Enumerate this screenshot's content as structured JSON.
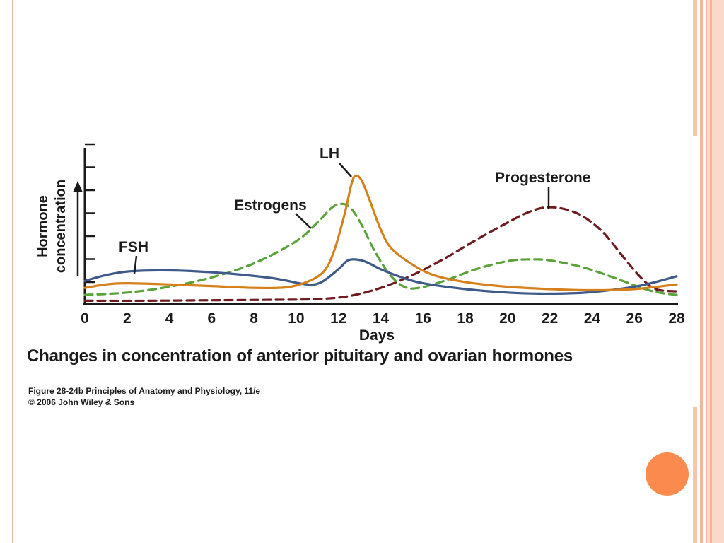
{
  "chart_data": {
    "type": "line",
    "title": "Changes in concentration of anterior pituitary and ovarian hormones",
    "xlabel": "Days",
    "ylabel": "Hormone concentration",
    "xlim": [
      0,
      28
    ],
    "x_ticks": [
      "0",
      "2",
      "4",
      "6",
      "8",
      "10",
      "12",
      "14",
      "16",
      "18",
      "20",
      "22",
      "24",
      "26",
      "28"
    ],
    "grid": false,
    "legend": "direct labels on curves",
    "series": [
      {
        "name": "FSH",
        "color": "#3e5a8a",
        "dashed": false,
        "points": [
          [
            0,
            0.9
          ],
          [
            1,
            1.15
          ],
          [
            2,
            1.3
          ],
          [
            3.5,
            1.35
          ],
          [
            5,
            1.32
          ],
          [
            7,
            1.2
          ],
          [
            9,
            1.0
          ],
          [
            10.5,
            0.75
          ],
          [
            11.2,
            0.85
          ],
          [
            12,
            1.4
          ],
          [
            12.5,
            1.8
          ],
          [
            13.2,
            1.75
          ],
          [
            14,
            1.4
          ],
          [
            15,
            1.05
          ],
          [
            16,
            0.8
          ],
          [
            18,
            0.55
          ],
          [
            20,
            0.4
          ],
          [
            22,
            0.35
          ],
          [
            24,
            0.42
          ],
          [
            26,
            0.65
          ],
          [
            27,
            0.85
          ],
          [
            28,
            1.1
          ]
        ]
      },
      {
        "name": "LH",
        "color": "#d5801a",
        "dashed": false,
        "points": [
          [
            0,
            0.6
          ],
          [
            1,
            0.75
          ],
          [
            2,
            0.8
          ],
          [
            4,
            0.75
          ],
          [
            6,
            0.68
          ],
          [
            8,
            0.6
          ],
          [
            9.5,
            0.62
          ],
          [
            10.5,
            0.85
          ],
          [
            11.3,
            1.3
          ],
          [
            11.8,
            2.2
          ],
          [
            12.3,
            3.8
          ],
          [
            12.6,
            5.0
          ],
          [
            12.8,
            5.4
          ],
          [
            13.1,
            5.2
          ],
          [
            13.5,
            4.3
          ],
          [
            14,
            3.1
          ],
          [
            14.5,
            2.3
          ],
          [
            15.5,
            1.6
          ],
          [
            16.5,
            1.15
          ],
          [
            18,
            0.85
          ],
          [
            20,
            0.65
          ],
          [
            22,
            0.55
          ],
          [
            24,
            0.5
          ],
          [
            26,
            0.55
          ],
          [
            28,
            0.75
          ]
        ]
      },
      {
        "name": "Estrogens",
        "color": "#5aa33a",
        "dashed": true,
        "points": [
          [
            0,
            0.3
          ],
          [
            2,
            0.4
          ],
          [
            4,
            0.65
          ],
          [
            6,
            1.05
          ],
          [
            8,
            1.65
          ],
          [
            10,
            2.6
          ],
          [
            11,
            3.4
          ],
          [
            11.7,
            4.05
          ],
          [
            12.2,
            4.2
          ],
          [
            12.6,
            4.0
          ],
          [
            13.1,
            3.3
          ],
          [
            13.7,
            2.2
          ],
          [
            14.4,
            1.2
          ],
          [
            15.1,
            0.65
          ],
          [
            15.8,
            0.6
          ],
          [
            17,
            0.9
          ],
          [
            18.5,
            1.4
          ],
          [
            20,
            1.75
          ],
          [
            21,
            1.82
          ],
          [
            22,
            1.78
          ],
          [
            23.5,
            1.5
          ],
          [
            25,
            1.05
          ],
          [
            26.5,
            0.55
          ],
          [
            27.3,
            0.38
          ],
          [
            28,
            0.3
          ]
        ]
      },
      {
        "name": "Progesterone",
        "color": "#6e1a1e",
        "dashed": true,
        "points": [
          [
            0,
            0.05
          ],
          [
            3,
            0.05
          ],
          [
            6,
            0.07
          ],
          [
            9,
            0.09
          ],
          [
            11,
            0.12
          ],
          [
            12.5,
            0.25
          ],
          [
            14,
            0.6
          ],
          [
            15.5,
            1.15
          ],
          [
            17,
            1.85
          ],
          [
            18.5,
            2.65
          ],
          [
            20,
            3.4
          ],
          [
            21,
            3.85
          ],
          [
            21.8,
            4.05
          ],
          [
            22.6,
            4.0
          ],
          [
            23.5,
            3.7
          ],
          [
            24.5,
            3.0
          ],
          [
            25.5,
            1.9
          ],
          [
            26.3,
            1.05
          ],
          [
            27,
            0.55
          ],
          [
            28,
            0.45
          ]
        ]
      }
    ]
  },
  "figure_credit": {
    "line1": "Figure 28-24b  Principles of Anatomy and Physiology, 11/e",
    "line2": "© 2006 John Wiley & Sons"
  },
  "colors": {
    "accent": "#fb8a4e",
    "frame": "#f4b59d"
  }
}
